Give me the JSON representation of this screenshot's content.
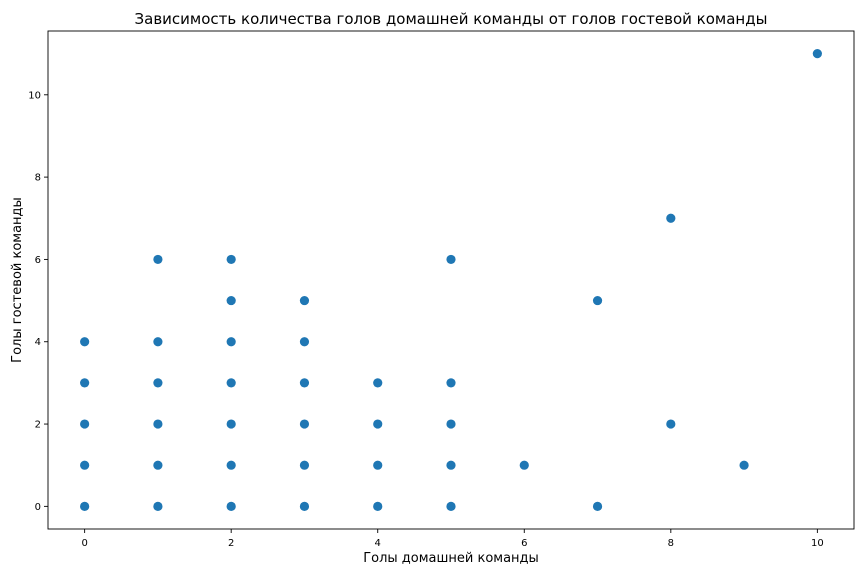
{
  "chart_data": {
    "type": "scatter",
    "title": "Зависимость количества голов домашней команды от голов гостевой команды",
    "xlabel": "Голы домашней команды",
    "ylabel": "Голы гостевой команды",
    "xlim": [
      -0.5,
      10.5
    ],
    "ylim": [
      -0.55,
      11.55
    ],
    "xticks": [
      0,
      2,
      4,
      6,
      8,
      10
    ],
    "yticks": [
      0,
      2,
      4,
      6,
      8,
      10
    ],
    "grid": false,
    "color": "#1f77b4",
    "points": [
      [
        0,
        0
      ],
      [
        0,
        1
      ],
      [
        0,
        2
      ],
      [
        0,
        3
      ],
      [
        0,
        4
      ],
      [
        1,
        0
      ],
      [
        1,
        1
      ],
      [
        1,
        2
      ],
      [
        1,
        3
      ],
      [
        1,
        4
      ],
      [
        1,
        6
      ],
      [
        2,
        0
      ],
      [
        2,
        1
      ],
      [
        2,
        2
      ],
      [
        2,
        3
      ],
      [
        2,
        4
      ],
      [
        2,
        5
      ],
      [
        2,
        6
      ],
      [
        3,
        0
      ],
      [
        3,
        1
      ],
      [
        3,
        2
      ],
      [
        3,
        3
      ],
      [
        3,
        4
      ],
      [
        3,
        5
      ],
      [
        4,
        0
      ],
      [
        4,
        1
      ],
      [
        4,
        2
      ],
      [
        4,
        3
      ],
      [
        5,
        0
      ],
      [
        5,
        1
      ],
      [
        5,
        2
      ],
      [
        5,
        3
      ],
      [
        5,
        6
      ],
      [
        6,
        1
      ],
      [
        7,
        0
      ],
      [
        7,
        5
      ],
      [
        8,
        2
      ],
      [
        8,
        7
      ],
      [
        9,
        1
      ],
      [
        10,
        11
      ]
    ]
  }
}
